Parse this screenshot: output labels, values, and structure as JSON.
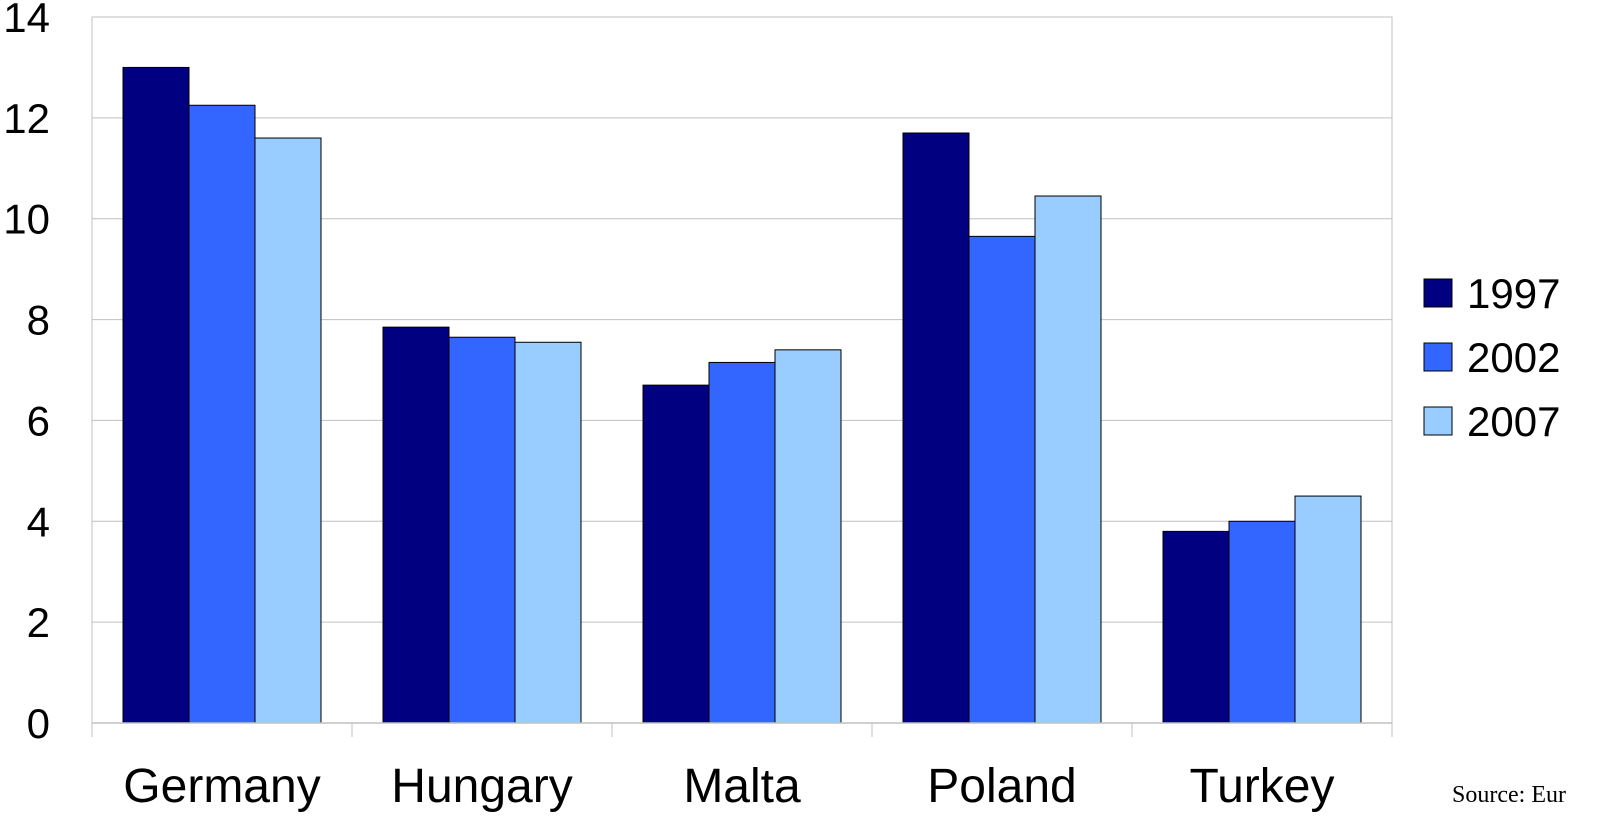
{
  "chart_data": {
    "type": "bar",
    "categories": [
      "Germany",
      "Hungary",
      "Malta",
      "Poland",
      "Turkey"
    ],
    "series": [
      {
        "name": "1997",
        "color": "#000080",
        "values": [
          13.0,
          7.85,
          6.7,
          11.7,
          3.8
        ]
      },
      {
        "name": "2002",
        "color": "#3366ff",
        "values": [
          12.25,
          7.65,
          7.15,
          9.65,
          4.0
        ]
      },
      {
        "name": "2007",
        "color": "#99ccff",
        "values": [
          11.6,
          7.55,
          7.4,
          10.45,
          4.5
        ]
      }
    ],
    "ylim": [
      0,
      14
    ],
    "yticks": [
      "0",
      "2",
      "4",
      "6",
      "8",
      "10",
      "12",
      "14"
    ],
    "grid": true,
    "legend_position": "right",
    "source": "Source: Eur"
  }
}
